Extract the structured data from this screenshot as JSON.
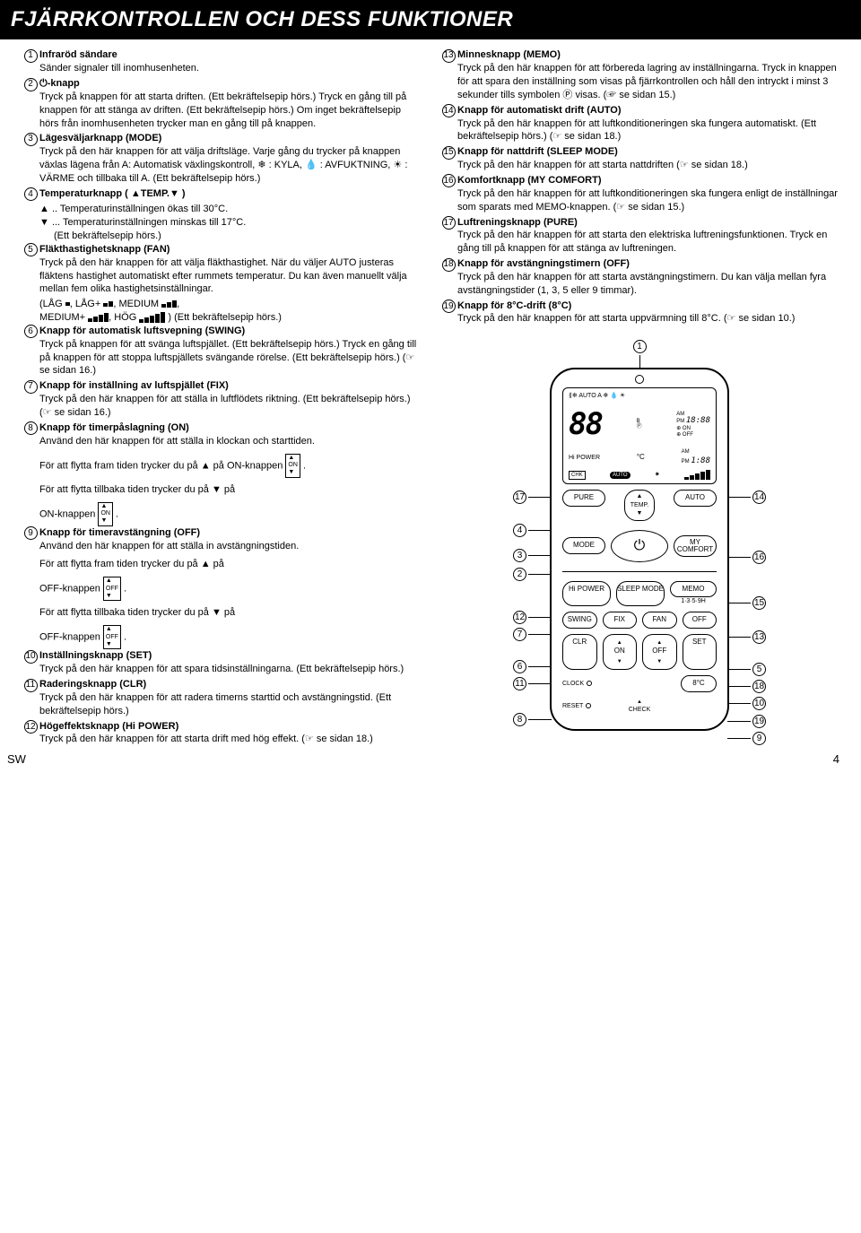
{
  "title": "FJÄRRKONTROLLEN OCH DESS FUNKTIONER",
  "footer_left": "SW",
  "footer_page": "4",
  "left": [
    {
      "n": "1",
      "title": "Infraröd sändare",
      "body": "Sänder signaler till inomhusenheten."
    },
    {
      "n": "2",
      "title": "⏻-knapp",
      "body": "Tryck på knappen för att starta driften. (Ett bekräftelsepip hörs.) Tryck en gång till på knappen för att stänga av driften. (Ett bekräftelsepip hörs.) Om inget bekräftelsepip hörs från inomhusenheten trycker man en gång till på knappen."
    },
    {
      "n": "3",
      "title": "Lägesväljarknapp (MODE)",
      "body": "Tryck på den här knappen för att välja driftsläge. Varje gång du trycker på knappen växlas lägena från A: Automatisk växlingskontroll, ❄ : KYLA, 💧 : AVFUKTNING, ☀ : VÄRME och tillbaka till A. (Ett bekräftelsepip hörs.)"
    },
    {
      "n": "4",
      "title": "Temperaturknapp ( ▲TEMP.▼ )",
      "body": ""
    },
    {
      "n": "",
      "title": "",
      "body_a": "▲ .. Temperaturinställningen ökas till 30°C.",
      "body_b": "▼ ... Temperaturinställningen minskas till 17°C.",
      "body_c": "(Ett bekräftelsepip hörs.)"
    },
    {
      "n": "5",
      "title": "Fläkthastighetsknapp (FAN)",
      "body": "Tryck på den här knappen för att välja fläkthastighet. När du väljer AUTO justeras fläktens hastighet automatiskt efter rummets temperatur. Du kan även manuellt välja mellan fem olika hastighetsinställningar."
    },
    {
      "n": "",
      "title": "",
      "fanline": true
    },
    {
      "n": "6",
      "title": "Knapp för automatisk luftsvepning (SWING)",
      "body": "Tryck på knappen för att svänga luftspjället. (Ett bekräftelsepip hörs.) Tryck en gång till på knappen för att stoppa luftspjällets svängande rörelse. (Ett bekräftelsepip hörs.) (☞ se sidan 16.)"
    },
    {
      "n": "7",
      "title": "Knapp för inställning av luftspjället (FIX)",
      "body": "Tryck på den här knappen för att ställa in luftflödets riktning. (Ett bekräftelsepip hörs.) (☞ se sidan 16.)"
    },
    {
      "n": "8",
      "title": "Knapp för timerpåslagning (ON)",
      "body": "Använd den här knappen för att ställa in klockan och starttiden."
    },
    {
      "n": "",
      "title": "",
      "inline1": "För att flytta fram tiden trycker du på ▲ på ON-knappen",
      "icon": "ON"
    },
    {
      "n": "",
      "title": "",
      "inline1": "För att flytta tillbaka tiden trycker du på ▼ på",
      "inline2": "ON-knappen",
      "icon": "ON"
    },
    {
      "n": "9",
      "title": "Knapp för timeravstängning (OFF)",
      "body": "Använd den här knappen för att ställa in avstängningstiden."
    },
    {
      "n": "",
      "title": "",
      "inline1": "För att flytta fram tiden trycker du på ▲ på",
      "inline2": "OFF-knappen",
      "icon": "OFF"
    },
    {
      "n": "",
      "title": "",
      "inline1": "För att flytta tillbaka tiden trycker du på ▼ på",
      "inline2": "OFF-knappen",
      "icon": "OFF"
    },
    {
      "n": "10",
      "title": "Inställningsknapp (SET)",
      "body": "Tryck på den här knappen för att spara tidsinställningarna. (Ett bekräftelsepip hörs.)"
    },
    {
      "n": "11",
      "title": "Raderingsknapp (CLR)",
      "body": "Tryck på den här knappen för att radera timerns starttid och avstängningstid. (Ett bekräftelsepip hörs.)"
    },
    {
      "n": "12",
      "title": "Högeffektsknapp (Hi POWER)",
      "body": "Tryck på den här knappen för att starta drift med hög effekt. (☞ se sidan 18.)"
    }
  ],
  "right": [
    {
      "n": "13",
      "title": "Minnesknapp (MEMO)",
      "body": "Tryck på den här knappen för att förbereda lagring av inställningarna. Tryck in knappen för att spara den inställning som visas på fjärrkontrollen och håll den intryckt i minst 3 sekunder tills symbolen Ⓟ visas. (☞ se sidan 15.)"
    },
    {
      "n": "14",
      "title": "Knapp för automatiskt drift (AUTO)",
      "body": "Tryck på den här knappen för att luftkonditioneringen ska fungera automatiskt. (Ett bekräftelsepip hörs.) (☞ se sidan 18.)"
    },
    {
      "n": "15",
      "title": "Knapp för nattdrift (SLEEP MODE)",
      "body": "Tryck på den här knappen för att starta nattdriften (☞ se sidan 18.)"
    },
    {
      "n": "16",
      "title": "Komfortknapp (MY COMFORT)",
      "body": "Tryck på den här knappen för att luftkonditioneringen ska fungera enligt de inställningar som sparats med MEMO-knappen. (☞ se sidan 15.)"
    },
    {
      "n": "17",
      "title": "Luftreningsknapp (PURE)",
      "body": "Tryck på den här knappen för att starta den elektriska luftreningsfunktionen. Tryck en gång till på knappen för att stänga av luftreningen."
    },
    {
      "n": "18",
      "title": "Knapp för avstängningstimern (OFF)",
      "body": "Tryck på den här knappen för att starta avstängningstimern. Du kan välja mellan fyra avstängningstider (1, 3, 5 eller 9 timmar)."
    },
    {
      "n": "19",
      "title": "Knapp för 8°C-drift (8°C)",
      "body": "Tryck på den här knappen för att starta uppvärmning till 8°C. (☞ se sidan 10.)"
    }
  ],
  "remote": {
    "lcd_top": "⟪❄ AUTO A ❄ 💧 ☀",
    "lcd_digits": "88",
    "lcd_b": "B",
    "lcd_p": "Ⓟ",
    "lcd_ampm": "AM\nPM",
    "lcd_time": "18:88",
    "lcd_on": "⊕ ON",
    "lcd_off": "⊕ OFF",
    "lcd_c": "°C",
    "lcd_time2": "1:88",
    "lcd_hipower": "Hi POWER",
    "lcd_chk": "CHK",
    "lcd_auto": "AUTO",
    "pure": "PURE",
    "auto": "AUTO",
    "temp": "TEMP.",
    "mode": "MODE",
    "mycomfort": "MY\nCOMFORT",
    "hipower": "Hi POWER",
    "sleep": "SLEEP MODE",
    "memo": "MEMO",
    "memo_sub": "1·3·5·9H",
    "swing": "SWING",
    "fix": "FIX",
    "fan": "FAN",
    "off": "OFF",
    "clr": "CLR",
    "on": "ON",
    "off2": "OFF",
    "set": "SET",
    "clock": "CLOCK",
    "reset": "RESET",
    "check": "CHECK",
    "c8": "8°C"
  },
  "callouts_left": [
    "17",
    "4",
    "3",
    "2",
    "12",
    "7",
    "6",
    "11",
    "8"
  ],
  "callouts_right": [
    "1",
    "14",
    "16",
    "15",
    "13",
    "5",
    "18",
    "10",
    "19",
    "9"
  ]
}
